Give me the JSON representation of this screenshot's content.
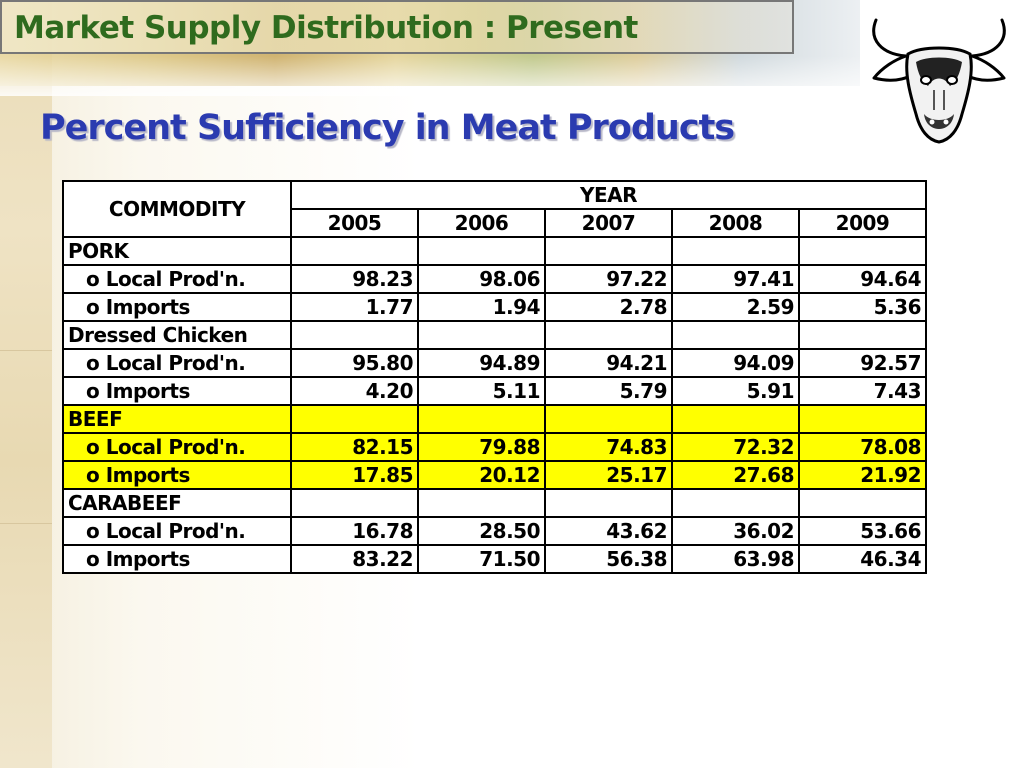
{
  "header": {
    "section_title": "Market Supply Distribution : Present",
    "slide_title": "Percent Sufficiency in Meat Products"
  },
  "logo": {
    "icon": "cow-head-icon"
  },
  "table": {
    "commodity_header": "COMMODITY",
    "year_header": "YEAR",
    "years": [
      "2005",
      "2006",
      "2007",
      "2008",
      "2009"
    ],
    "groups": [
      {
        "name": "PORK",
        "highlight": false,
        "rows": [
          {
            "label": "o Local Prod'n.",
            "values": [
              "98.23",
              "98.06",
              "97.22",
              "97.41",
              "94.64"
            ]
          },
          {
            "label": "o Imports",
            "values": [
              "1.77",
              "1.94",
              "2.78",
              "2.59",
              "5.36"
            ]
          }
        ]
      },
      {
        "name": "Dressed Chicken",
        "highlight": false,
        "rows": [
          {
            "label": "o Local Prod'n.",
            "values": [
              "95.80",
              "94.89",
              "94.21",
              "94.09",
              "92.57"
            ]
          },
          {
            "label": "o Imports",
            "values": [
              "4.20",
              "5.11",
              "5.79",
              "5.91",
              "7.43"
            ]
          }
        ]
      },
      {
        "name": "BEEF",
        "highlight": true,
        "rows": [
          {
            "label": "o Local Prod'n.",
            "values": [
              "82.15",
              "79.88",
              "74.83",
              "72.32",
              "78.08"
            ]
          },
          {
            "label": "o Imports",
            "values": [
              "17.85",
              "20.12",
              "25.17",
              "27.68",
              "21.92"
            ]
          }
        ]
      },
      {
        "name": "CARABEEF",
        "highlight": false,
        "rows": [
          {
            "label": "o Local Prod'n.",
            "values": [
              "16.78",
              "28.50",
              "43.62",
              "36.02",
              "53.66"
            ]
          },
          {
            "label": "o Imports",
            "values": [
              "83.22",
              "71.50",
              "56.38",
              "63.98",
              "46.34"
            ]
          }
        ]
      }
    ]
  }
}
